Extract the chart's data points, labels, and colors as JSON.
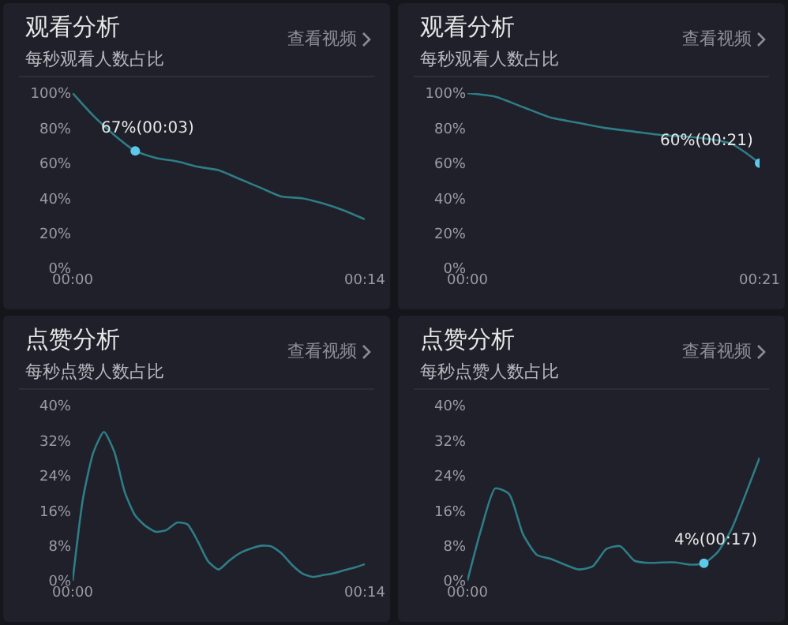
{
  "chart_data": [
    {
      "type": "line",
      "title": "观看分析",
      "subtitle": "每秒观看人数占比",
      "annotations": [
        "查看视频",
        {
          "text": "67%(00:03)",
          "x": 3,
          "y": 67
        }
      ],
      "x": [
        0,
        1,
        2,
        3,
        4,
        5,
        6,
        7,
        8,
        9,
        10,
        11,
        12,
        13,
        14
      ],
      "series": [
        {
          "color": "#2e7d87",
          "values": [
            100,
            87,
            76,
            67,
            63,
            61,
            58,
            56,
            51,
            46,
            41,
            40,
            37,
            33,
            28
          ]
        }
      ],
      "xlim": [
        0,
        14
      ],
      "xticks": [
        {
          "value": 0,
          "label": "00:00"
        },
        {
          "value": 14,
          "label": "00:14"
        }
      ],
      "ylim": [
        0,
        100
      ],
      "yticks": [
        {
          "value": 0,
          "label": "0%"
        },
        {
          "value": 20,
          "label": "20%"
        },
        {
          "value": 40,
          "label": "40%"
        },
        {
          "value": 60,
          "label": "60%"
        },
        {
          "value": 80,
          "label": "80%"
        },
        {
          "value": 100,
          "label": "100%"
        }
      ],
      "grid": false,
      "marker": "none",
      "line_style": "solid"
    },
    {
      "type": "line",
      "title": "观看分析",
      "subtitle": "每秒观看人数占比",
      "annotations": [
        "查看视频",
        {
          "text": "60%(00:21)",
          "x": 21,
          "y": 60
        }
      ],
      "x": [
        0,
        2,
        4,
        6,
        8,
        10,
        12,
        14,
        16,
        18,
        19,
        20,
        21
      ],
      "series": [
        {
          "color": "#2e7d87",
          "values": [
            100,
            98,
            92,
            86,
            83,
            80,
            78,
            76,
            75,
            73,
            71,
            66,
            60
          ]
        }
      ],
      "xlim": [
        0,
        21
      ],
      "xticks": [
        {
          "value": 0,
          "label": "00:00"
        },
        {
          "value": 21,
          "label": "00:21"
        }
      ],
      "ylim": [
        0,
        100
      ],
      "yticks": [
        {
          "value": 0,
          "label": "0%"
        },
        {
          "value": 20,
          "label": "20%"
        },
        {
          "value": 40,
          "label": "40%"
        },
        {
          "value": 60,
          "label": "60%"
        },
        {
          "value": 80,
          "label": "80%"
        },
        {
          "value": 100,
          "label": "100%"
        }
      ],
      "grid": false,
      "marker": "none",
      "line_style": "solid"
    },
    {
      "type": "line",
      "title": "点赞分析",
      "subtitle": "每秒点赞人数占比",
      "annotations": [
        "查看视频"
      ],
      "x": [
        0,
        0.5,
        1,
        1.5,
        2,
        2.5,
        3,
        3.5,
        4,
        4.5,
        5,
        5.5,
        6,
        6.5,
        7,
        7.5,
        8,
        8.5,
        9,
        9.5,
        10,
        10.5,
        11,
        11.5,
        12,
        12.5,
        13,
        13.5,
        14
      ],
      "series": [
        {
          "color": "#2e7d87",
          "values": [
            0,
            18.9,
            29.4,
            34,
            29.4,
            20.2,
            14.9,
            12.5,
            11.2,
            11.6,
            13.3,
            12.9,
            9,
            4.4,
            2.6,
            4.6,
            6.3,
            7.3,
            8,
            7.9,
            6.3,
            3.7,
            1.7,
            0.9,
            1.3,
            1.7,
            2.4,
            3,
            3.8
          ]
        }
      ],
      "xlim": [
        0,
        14
      ],
      "xticks": [
        {
          "value": 0,
          "label": "00:00"
        },
        {
          "value": 14,
          "label": "00:14"
        }
      ],
      "ylim": [
        0,
        40
      ],
      "yticks": [
        {
          "value": 0,
          "label": "0%"
        },
        {
          "value": 8,
          "label": "8%"
        },
        {
          "value": 16,
          "label": "16%"
        },
        {
          "value": 24,
          "label": "24%"
        },
        {
          "value": 32,
          "label": "32%"
        },
        {
          "value": 40,
          "label": "40%"
        }
      ],
      "grid": false,
      "marker": "none",
      "line_style": "solid"
    },
    {
      "type": "line",
      "title": "点赞分析",
      "subtitle": "每秒点赞人数占比",
      "annotations": [
        "查看视频",
        {
          "text": "4%(00:17)",
          "y": 4
        }
      ],
      "categories": [
        "00:00",
        null,
        null,
        null,
        null,
        null,
        null,
        null,
        null,
        null,
        null,
        null,
        null,
        null,
        null,
        null,
        null,
        null,
        null,
        null,
        null,
        null
      ],
      "series": [
        {
          "color": "#2e7d87",
          "values": [
            0,
            11.9,
            21.1,
            19.8,
            10.6,
            5.9,
            5,
            3.7,
            2.6,
            3.3,
            7.3,
            7.9,
            4.6,
            4.1,
            4.2,
            4.2,
            3.7,
            4,
            6.6,
            11.9,
            19.8,
            28.1
          ]
        }
      ],
      "ylim": [
        0,
        40
      ],
      "yticks": [
        {
          "value": 0,
          "label": "0%"
        },
        {
          "value": 8,
          "label": "8%"
        },
        {
          "value": 16,
          "label": "16%"
        },
        {
          "value": 24,
          "label": "24%"
        },
        {
          "value": 32,
          "label": "32%"
        },
        {
          "value": 40,
          "label": "40%"
        }
      ],
      "grid": false,
      "marker": "none",
      "line_style": "solid"
    }
  ]
}
